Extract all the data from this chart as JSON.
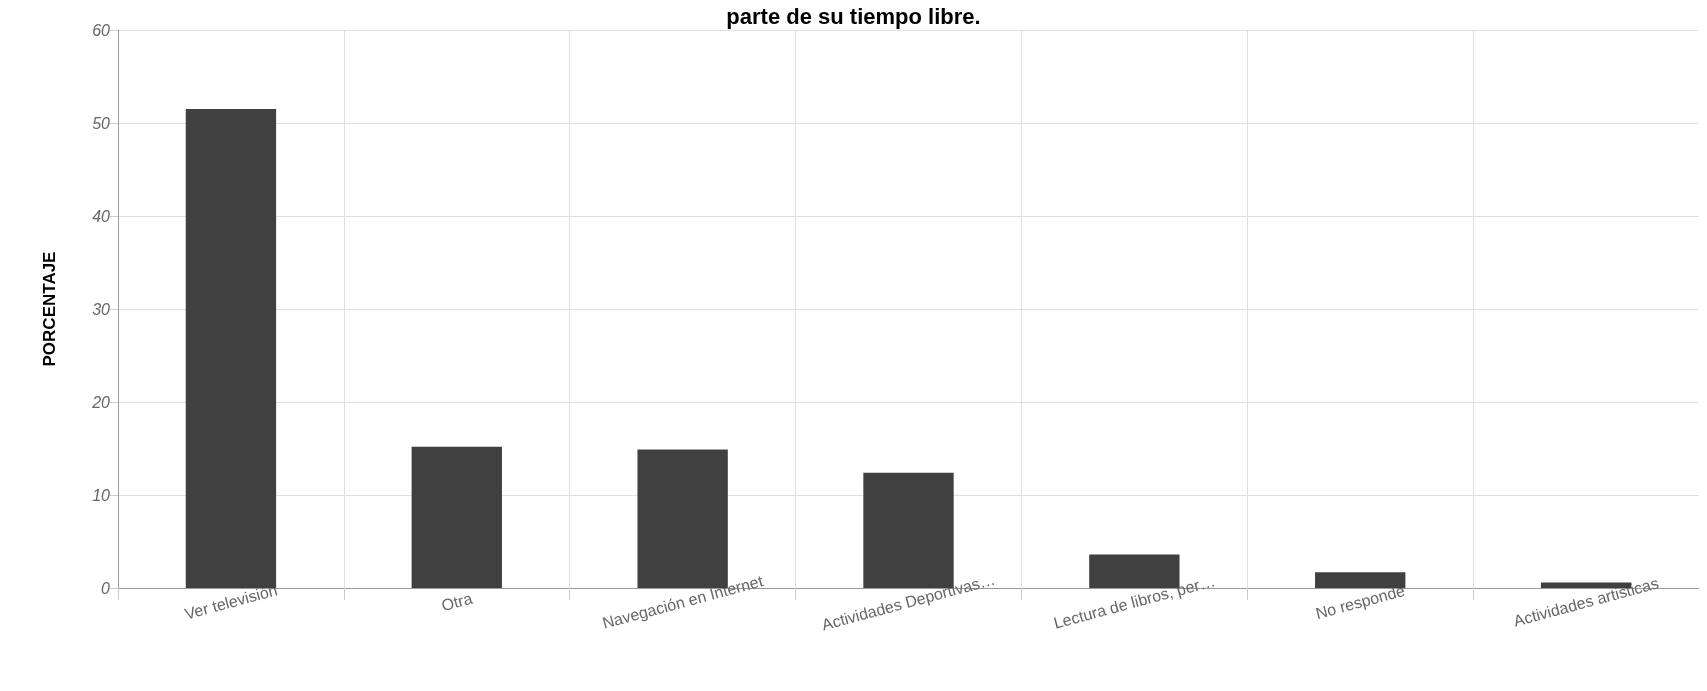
{
  "chart_data": {
    "type": "bar",
    "title": "parte de su tiempo libre.",
    "ylabel": "PORCENTAJE",
    "categories": [
      "Ver televisión",
      "Otra",
      "Navegación en Internet",
      "Actividades Deportivas…",
      "Lectura de libros, per…",
      "No responde",
      "Actividades artisticas"
    ],
    "values": [
      51.5,
      15.2,
      14.9,
      12.4,
      3.6,
      1.7,
      0.6
    ],
    "color": "#404040",
    "ylim": [
      0,
      60
    ],
    "yticks": [
      0,
      10,
      20,
      30,
      40,
      50,
      60
    ],
    "grid": true
  }
}
